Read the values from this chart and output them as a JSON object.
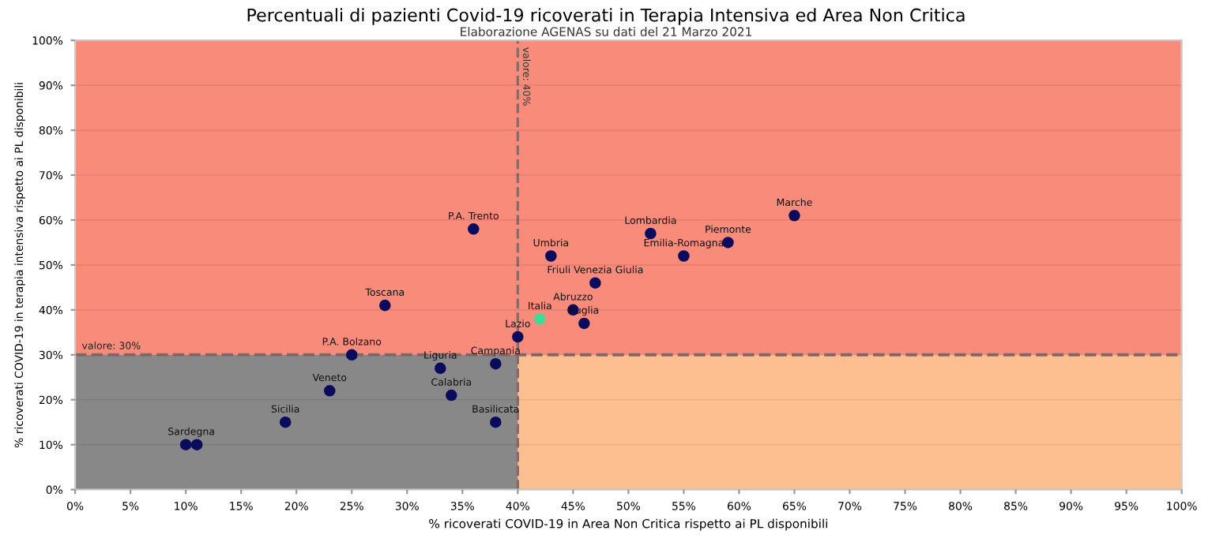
{
  "chart_data": {
    "type": "scatter",
    "title": "Percentuali di pazienti Covid-19 ricoverati in Terapia Intensiva ed Area Non Critica",
    "subtitle": "Elaborazione AGENAS su dati del 21 Marzo 2021",
    "xlabel": "% ricoverati COVID-19 in Area Non Critica rispetto ai PL disponibili",
    "ylabel": "% ricoverati COVID-19 in terapia intensiva rispetto ai PL disponibili",
    "series": [
      {
        "color": "#0b0b5e",
        "x": [
          10,
          11,
          19,
          23,
          25,
          28,
          33,
          34,
          38,
          38,
          36,
          40,
          43,
          45,
          46,
          47,
          52,
          55,
          59,
          65
        ],
        "values": [
          10,
          10,
          15,
          22,
          30,
          41,
          27,
          21,
          28,
          15,
          58,
          34,
          52,
          40,
          37,
          46,
          57,
          52,
          55,
          61
        ]
      },
      {
        "color": "#3ddc97",
        "x": [
          42
        ],
        "values": [
          38
        ]
      }
    ],
    "annotations": [
      {
        "text": "Sardegna",
        "x": 10.5,
        "y": 10
      },
      {
        "text": "Sicilia",
        "x": 19,
        "y": 15
      },
      {
        "text": "Veneto",
        "x": 23,
        "y": 22
      },
      {
        "text": "P.A. Bolzano",
        "x": 25,
        "y": 30
      },
      {
        "text": "Toscana",
        "x": 28,
        "y": 41
      },
      {
        "text": "Liguria",
        "x": 33,
        "y": 27
      },
      {
        "text": "Calabria",
        "x": 34,
        "y": 21
      },
      {
        "text": "Campania",
        "x": 38,
        "y": 28
      },
      {
        "text": "Basilicata",
        "x": 38,
        "y": 15
      },
      {
        "text": "P.A. Trento",
        "x": 36,
        "y": 58
      },
      {
        "text": "Lazio",
        "x": 40,
        "y": 34
      },
      {
        "text": "Italia",
        "x": 42,
        "y": 38
      },
      {
        "text": "Umbria",
        "x": 43,
        "y": 52
      },
      {
        "text": "Abruzzo",
        "x": 45,
        "y": 40
      },
      {
        "text": "Puglia",
        "x": 46,
        "y": 37
      },
      {
        "text": "Friuli Venezia Giulia",
        "x": 47,
        "y": 46
      },
      {
        "text": "Lombardia",
        "x": 52,
        "y": 57
      },
      {
        "text": "Emilia-Romagna",
        "x": 55,
        "y": 52
      },
      {
        "text": "Piemonte",
        "x": 59,
        "y": 55
      },
      {
        "text": "Marche",
        "x": 65,
        "y": 61
      }
    ],
    "bands": [
      {
        "axis": "y",
        "from": 0,
        "to": 30,
        "color": "#888888"
      },
      {
        "axis": "x",
        "from": 40,
        "to": 100,
        "color": "#fdbf90"
      },
      {
        "axis": "y",
        "from": 30,
        "to": 100,
        "color": "#f98b7b"
      }
    ],
    "ref_lines": [
      {
        "axis": "x",
        "value": 40,
        "label": "valore: 40%",
        "color": "#8a6a6a",
        "line_style": "dashed"
      },
      {
        "axis": "y",
        "value": 30,
        "label": "valore: 30%",
        "color": "#8a6a6a",
        "line_style": "dashed"
      }
    ],
    "xlim": [
      0,
      100
    ],
    "ylim": [
      0,
      100
    ],
    "xticks": [
      {
        "value": 0,
        "label": "0%"
      },
      {
        "value": 5,
        "label": "5%"
      },
      {
        "value": 10,
        "label": "10%"
      },
      {
        "value": 15,
        "label": "15%"
      },
      {
        "value": 20,
        "label": "20%"
      },
      {
        "value": 25,
        "label": "25%"
      },
      {
        "value": 30,
        "label": "30%"
      },
      {
        "value": 35,
        "label": "35%"
      },
      {
        "value": 40,
        "label": "40%"
      },
      {
        "value": 45,
        "label": "45%"
      },
      {
        "value": 50,
        "label": "50%"
      },
      {
        "value": 55,
        "label": "55%"
      },
      {
        "value": 60,
        "label": "60%"
      },
      {
        "value": 65,
        "label": "65%"
      },
      {
        "value": 70,
        "label": "70%"
      },
      {
        "value": 75,
        "label": "75%"
      },
      {
        "value": 80,
        "label": "80%"
      },
      {
        "value": 85,
        "label": "85%"
      },
      {
        "value": 90,
        "label": "90%"
      },
      {
        "value": 95,
        "label": "95%"
      },
      {
        "value": 100,
        "label": "100%"
      }
    ],
    "yticks": [
      {
        "value": 0,
        "label": "0%"
      },
      {
        "value": 10,
        "label": "10%"
      },
      {
        "value": 20,
        "label": "20%"
      },
      {
        "value": 30,
        "label": "30%"
      },
      {
        "value": 40,
        "label": "40%"
      },
      {
        "value": 50,
        "label": "50%"
      },
      {
        "value": 60,
        "label": "60%"
      },
      {
        "value": 70,
        "label": "70%"
      },
      {
        "value": 80,
        "label": "80%"
      },
      {
        "value": 90,
        "label": "90%"
      },
      {
        "value": 100,
        "label": "100%"
      }
    ],
    "grid": "y",
    "marker": "circle"
  }
}
